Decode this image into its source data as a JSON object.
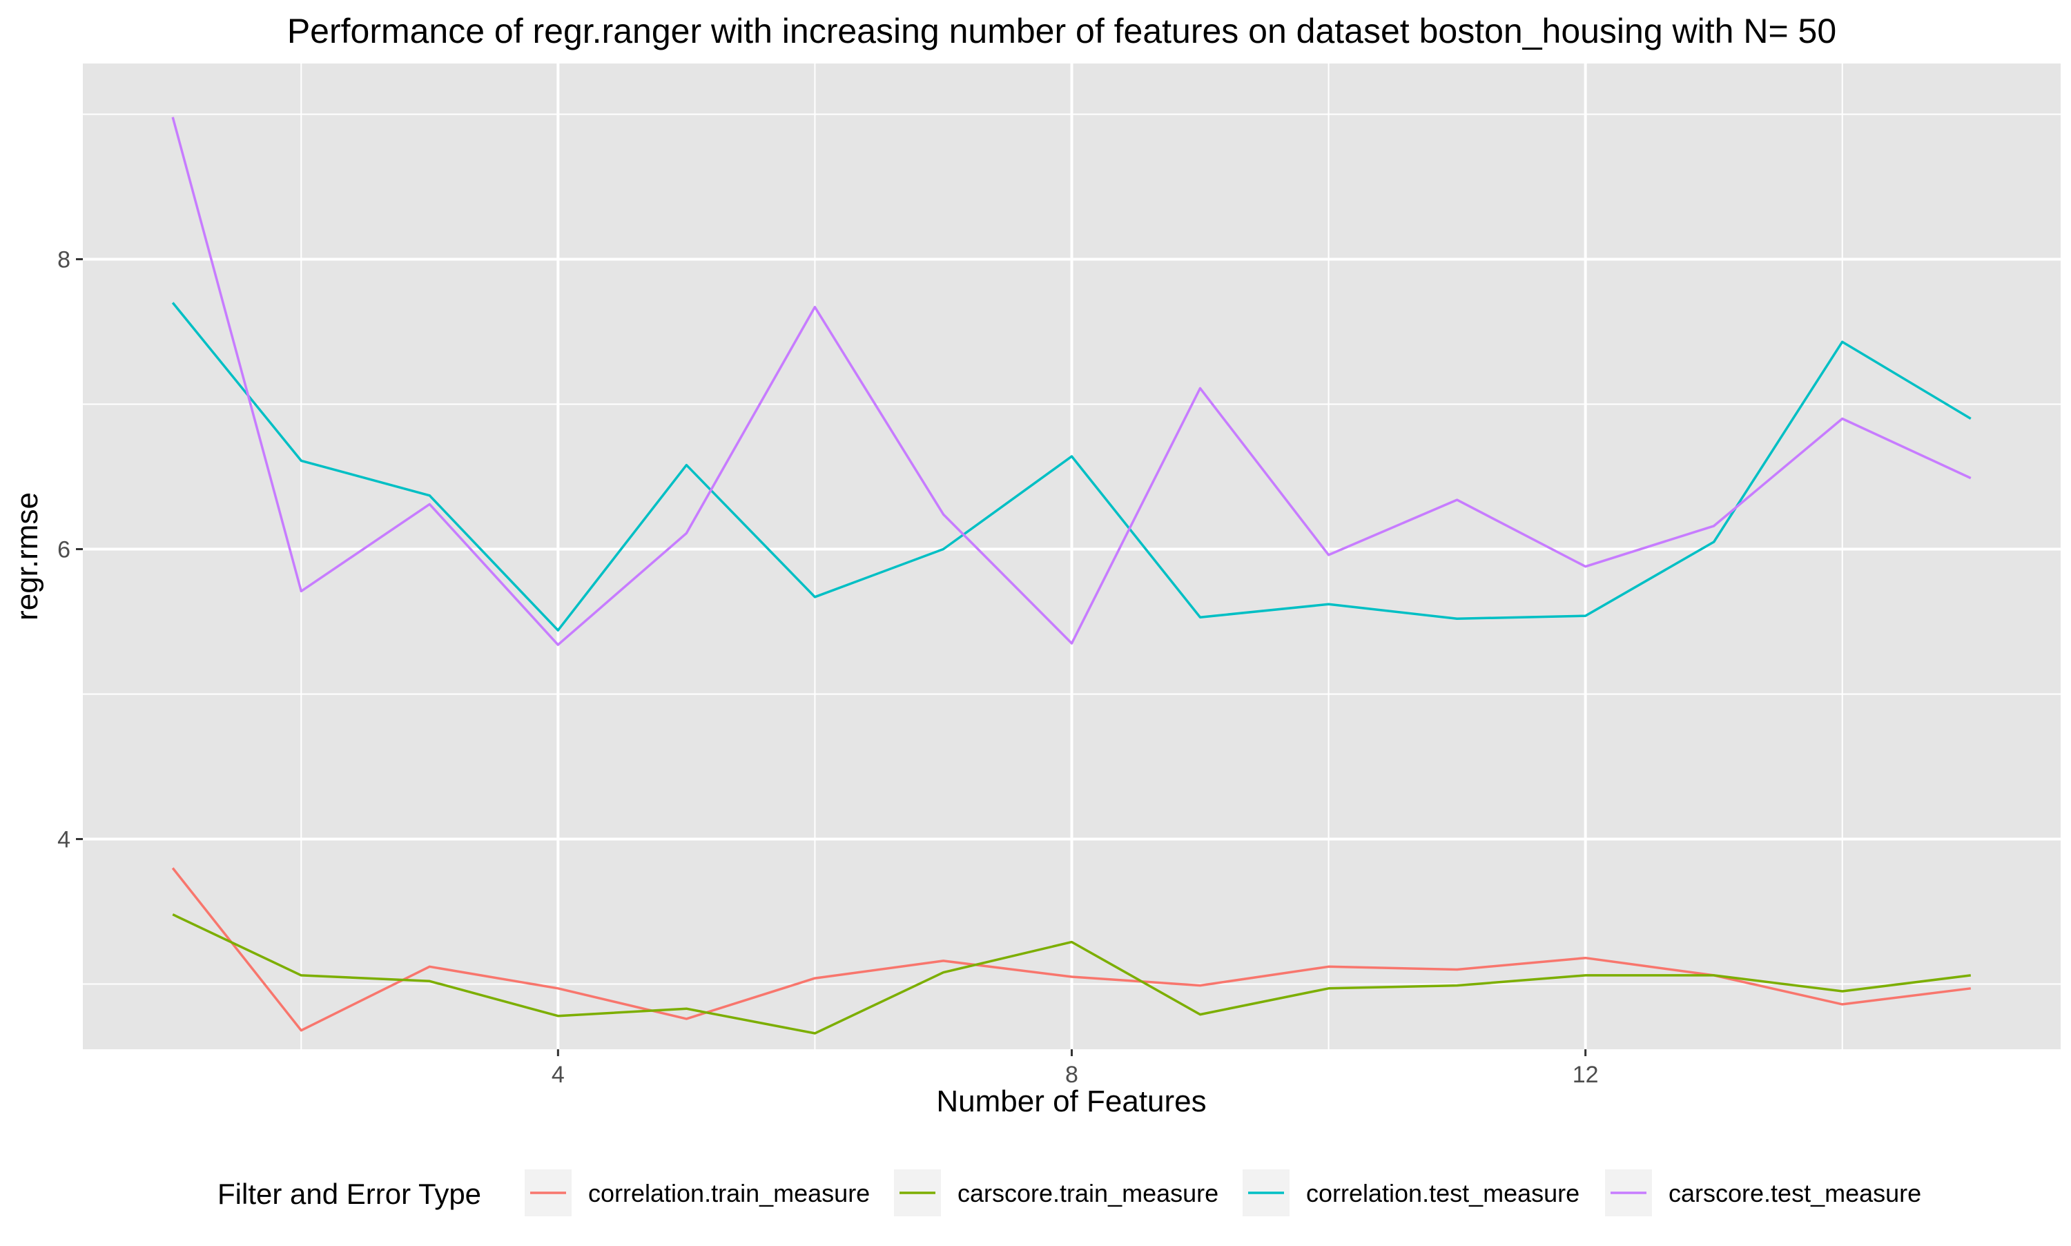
{
  "chart_data": {
    "type": "line",
    "title": "Performance of regr.ranger with increasing number of features on dataset boston_housing with N= 50",
    "xlabel": "Number of Features",
    "ylabel": "regr.rmse",
    "xlim": [
      0.3,
      15.7
    ],
    "ylim": [
      2.55,
      9.35
    ],
    "x_ticks": [
      4,
      8,
      12
    ],
    "x_tick_labels": [
      "4",
      "8",
      "12"
    ],
    "y_ticks": [
      4,
      6,
      8
    ],
    "y_tick_labels": [
      "4",
      "6",
      "8"
    ],
    "x": [
      1,
      2,
      3,
      4,
      5,
      6,
      7,
      8,
      9,
      10,
      11,
      12,
      13,
      14,
      15
    ],
    "grid": true,
    "legend_position": "bottom",
    "legend_title": "Filter and Error Type",
    "panel_background": "#e5e5e5",
    "grid_color": "#ffffff",
    "series": [
      {
        "name": "correlation.train_measure",
        "color": "#F8766D",
        "values": [
          3.8,
          2.68,
          3.12,
          2.97,
          2.76,
          3.04,
          3.16,
          3.05,
          2.99,
          3.12,
          3.1,
          3.18,
          3.06,
          2.86,
          2.97
        ]
      },
      {
        "name": "carscore.train_measure",
        "color": "#7CAE00",
        "values": [
          3.48,
          3.06,
          3.02,
          2.78,
          2.83,
          2.66,
          3.08,
          3.29,
          2.79,
          2.97,
          2.99,
          3.06,
          3.06,
          2.95,
          3.06
        ]
      },
      {
        "name": "correlation.test_measure",
        "color": "#00BFC4",
        "values": [
          7.7,
          6.61,
          6.37,
          5.44,
          6.58,
          5.67,
          6.0,
          6.64,
          5.53,
          5.62,
          5.52,
          5.54,
          6.05,
          7.43,
          6.9
        ]
      },
      {
        "name": "carscore.test_measure",
        "color": "#C77CFF",
        "values": [
          8.98,
          5.71,
          6.31,
          5.34,
          6.11,
          7.67,
          6.24,
          5.35,
          7.11,
          5.96,
          6.34,
          5.88,
          6.16,
          6.9,
          6.49
        ]
      }
    ]
  }
}
